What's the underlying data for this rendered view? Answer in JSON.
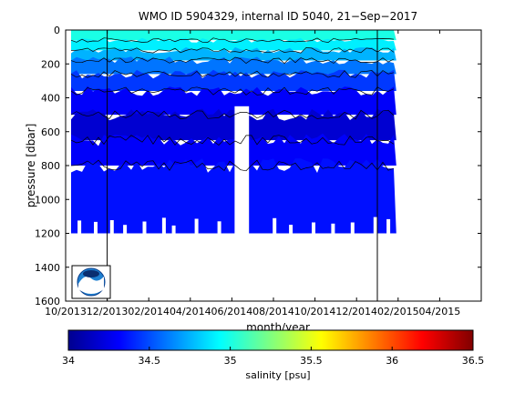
{
  "chart_data": {
    "type": "heatmap",
    "title": "WMO ID 5904329, internal ID 5040, 21−Sep−2017",
    "xlabel": "month/year",
    "ylabel": "pressure [dbar]",
    "colorbar_label": "salinity [psu]",
    "x_ticks": [
      "10/2013",
      "12/2013",
      "02/2014",
      "04/2014",
      "06/2014",
      "08/2014",
      "10/2014",
      "12/2014",
      "02/2015",
      "04/2015"
    ],
    "x_range": [
      "2013-10",
      "2015-06"
    ],
    "y_ticks": [
      0,
      200,
      400,
      600,
      800,
      1000,
      1200,
      1400,
      1600
    ],
    "ylim": [
      1600,
      0
    ],
    "y_reversed": true,
    "colorbar_ticks": [
      34,
      34.5,
      35,
      35.5,
      36,
      36.5
    ],
    "clim": [
      34,
      36.5
    ],
    "colormap": "jet",
    "grid": false,
    "data_extent": {
      "start": "2013-10",
      "end": "2015-02"
    },
    "vertical_markers": [
      "2013-12",
      "2015-01"
    ],
    "bands": [
      {
        "pressure_top": 0,
        "pressure_bottom": 60,
        "salinity": 35.0
      },
      {
        "pressure_top": 60,
        "pressure_bottom": 120,
        "salinity": 34.9
      },
      {
        "pressure_top": 120,
        "pressure_bottom": 180,
        "salinity": 34.75
      },
      {
        "pressure_top": 180,
        "pressure_bottom": 260,
        "salinity": 34.6
      },
      {
        "pressure_top": 260,
        "pressure_bottom": 360,
        "salinity": 34.45
      },
      {
        "pressure_top": 360,
        "pressure_bottom": 500,
        "salinity": 34.3
      },
      {
        "pressure_top": 500,
        "pressure_bottom": 650,
        "salinity": 34.2
      },
      {
        "pressure_top": 650,
        "pressure_bottom": 800,
        "salinity": 34.3
      },
      {
        "pressure_top": 800,
        "pressure_bottom": 1200,
        "salinity": 34.35
      }
    ],
    "data_gap": {
      "start": "2014-06",
      "end": "2014-07",
      "pressure_top": 450
    }
  },
  "logo": {
    "name": "NOAA"
  }
}
